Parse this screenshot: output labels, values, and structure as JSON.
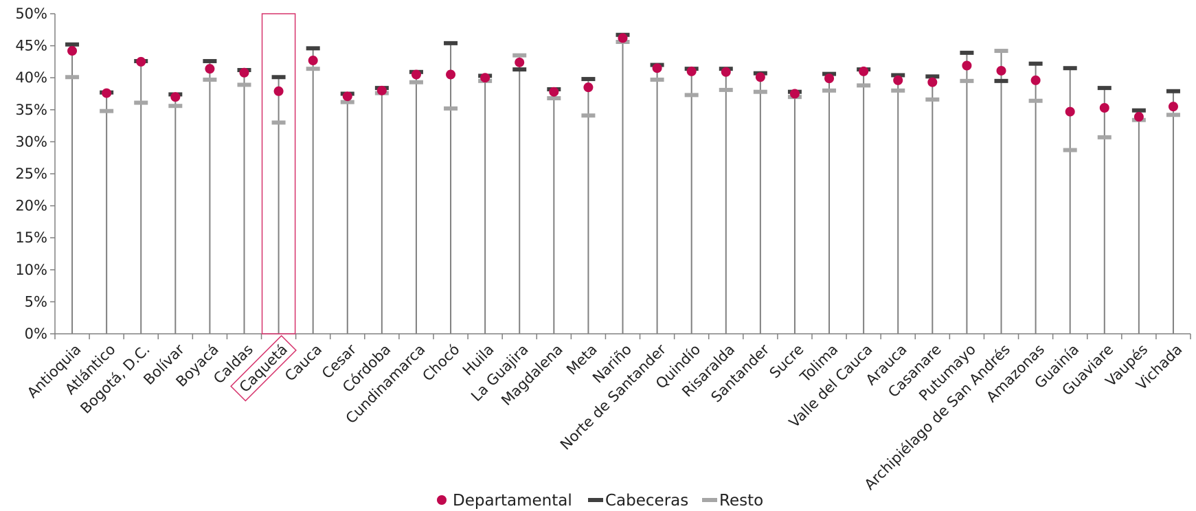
{
  "chart_data": {
    "type": "scatter",
    "title": "",
    "xlabel": "",
    "ylabel": "",
    "ylim": [
      0,
      50
    ],
    "yticks": [
      "0%",
      "5%",
      "10%",
      "15%",
      "20%",
      "25%",
      "30%",
      "35%",
      "40%",
      "45%",
      "50%"
    ],
    "grid": false,
    "legend_position": "bottom",
    "highlighted_category": "Caquetá",
    "colors": {
      "departamental": "#C0084E",
      "cabeceras": "#404040",
      "resto": "#A6A6A6",
      "stem": "#808080",
      "highlight": "#D6336C"
    },
    "categories": [
      "Antioquia",
      "Atlántico",
      "Bogotá, D.C.",
      "Bolívar",
      "Boyacá",
      "Caldas",
      "Caquetá",
      "Cauca",
      "Cesar",
      "Córdoba",
      "Cundinamarca",
      "Chocó",
      "Huila",
      "La Guajira",
      "Magdalena",
      "Meta",
      "Nariño",
      "Norte de Santander",
      "Quindío",
      "Risaralda",
      "Santander",
      "Sucre",
      "Tolima",
      "Valle del Cauca",
      "Arauca",
      "Casanare",
      "Putumayo",
      "Archipiélago de San Andrés",
      "Amazonas",
      "Guainía",
      "Guaviare",
      "Vaupés",
      "Vichada"
    ],
    "series": [
      {
        "name": "Departamental",
        "marker": "circle",
        "values": [
          44.2,
          37.6,
          42.5,
          37.0,
          41.4,
          40.8,
          37.9,
          42.7,
          37.1,
          38.0,
          40.5,
          40.5,
          40.0,
          42.4,
          37.8,
          38.5,
          46.2,
          41.5,
          41.0,
          40.9,
          40.1,
          37.5,
          39.9,
          41.0,
          39.6,
          39.3,
          41.9,
          41.1,
          39.6,
          34.7,
          35.3,
          33.9,
          35.5
        ]
      },
      {
        "name": "Cabeceras",
        "marker": "dash",
        "values": [
          45.2,
          37.7,
          42.6,
          37.4,
          42.6,
          41.2,
          40.1,
          44.6,
          37.5,
          38.4,
          40.9,
          45.4,
          40.3,
          41.3,
          38.2,
          39.8,
          46.7,
          42.0,
          41.4,
          41.4,
          40.7,
          37.8,
          40.6,
          41.3,
          40.4,
          40.2,
          43.9,
          39.5,
          42.2,
          41.5,
          38.4,
          34.9,
          37.9
        ]
      },
      {
        "name": "Resto",
        "marker": "dash",
        "values": [
          40.1,
          34.8,
          36.1,
          35.6,
          39.7,
          38.9,
          33.0,
          41.4,
          36.2,
          37.6,
          39.3,
          35.2,
          39.5,
          43.5,
          36.8,
          34.1,
          45.6,
          39.7,
          37.3,
          38.1,
          37.8,
          37.0,
          38.0,
          38.8,
          38.0,
          36.6,
          39.5,
          44.2,
          36.4,
          28.7,
          30.7,
          33.4,
          34.2
        ]
      }
    ]
  }
}
